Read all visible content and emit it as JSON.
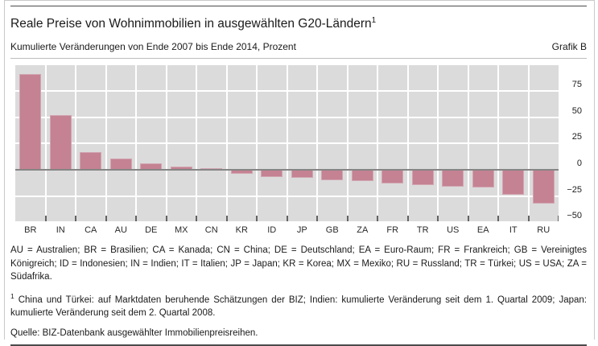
{
  "header": {
    "title": "Reale Preise von Wohnimmobilien in ausgewählten G20-Ländern",
    "title_sup": "1",
    "subtitle": "Kumulierte Veränderungen von Ende 2007 bis Ende 2014, Prozent",
    "corner_label": "Grafik B"
  },
  "chart_data": {
    "type": "bar",
    "categories": [
      "BR",
      "IN",
      "CA",
      "AU",
      "DE",
      "MX",
      "CN",
      "KR",
      "ID",
      "JP",
      "GB",
      "ZA",
      "FR",
      "TR",
      "US",
      "EA",
      "IT",
      "RU"
    ],
    "values": [
      91,
      52,
      17,
      11,
      6,
      3,
      2,
      -3,
      -6,
      -7,
      -9,
      -10,
      -12,
      -14,
      -15,
      -16,
      -23,
      -31
    ],
    "title": "Reale Preise von Wohnimmobilien in ausgewählten G20-Ländern",
    "subtitle": "Kumulierte Veränderungen von Ende 2007 bis Ende 2014, Prozent",
    "xlabel": "",
    "ylabel": "Prozent",
    "ylim": [
      -49,
      101
    ],
    "yticks": [
      75,
      50,
      25,
      0,
      -25,
      -50
    ],
    "ytick_labels": [
      "75",
      "50",
      "25",
      "0",
      "−25",
      "−50"
    ],
    "gridlines": [
      100,
      75,
      50,
      25,
      -25
    ],
    "grid": true,
    "legend": false,
    "legend_position": "none",
    "plot_bg": "#dbdbdb",
    "grid_color": "#ffffff",
    "bar_color": "#c48292",
    "bar_edge_color": "#d2a6b2",
    "zero_line_color": "#858585"
  },
  "footnotes": {
    "abbreviations": "AU = Australien; BR = Brasilien; CA = Kanada; CN = China; DE = Deutschland; EA = Euro-Raum; FR = Frankreich; GB = Vereinigtes Königreich; ID = Indonesien; IN = Indien; IT = Italien; JP = Japan; KR = Korea; MX = Mexiko; RU = Russland; TR = Türkei; US = USA; ZA = Südafrika.",
    "note_marker": "1",
    "note_text": " China und Türkei: auf Marktdaten beruhende Schätzungen der BIZ; Indien: kumulierte Veränderung seit dem 1. Quartal 2009; Japan: kumulierte Veränderung seit dem 2. Quartal 2008.",
    "source": "Quelle: BIZ-Datenbank ausgewählter Immobilienpreisreihen."
  }
}
